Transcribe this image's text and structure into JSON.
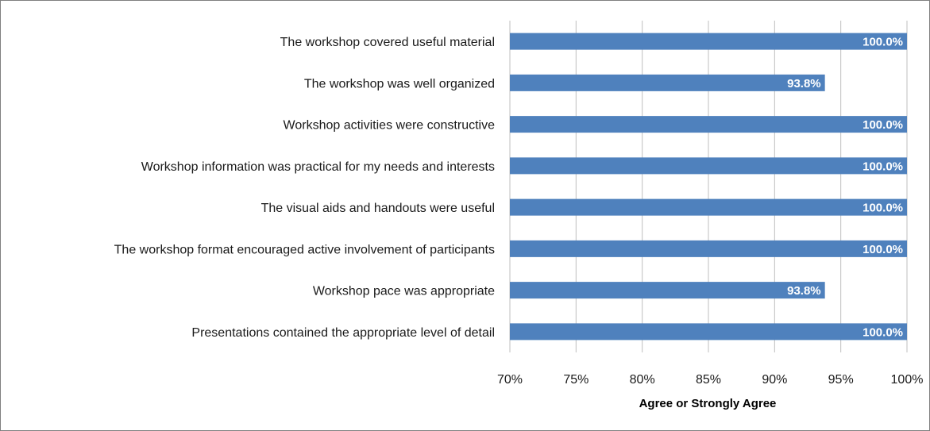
{
  "chart_data": {
    "type": "bar",
    "orientation": "horizontal",
    "title": "",
    "xlabel": "Agree or Strongly Agree",
    "ylabel": "",
    "xlim": [
      70,
      100
    ],
    "ticks": [
      70,
      75,
      80,
      85,
      90,
      95,
      100
    ],
    "tick_labels": [
      "70%",
      "75%",
      "80%",
      "85%",
      "90%",
      "95%",
      "100%"
    ],
    "grid": true,
    "legend": "none",
    "bar_color": "#4f81bd",
    "grid_color": "#bfbfbf",
    "categories": [
      "The workshop covered useful material",
      "The workshop was well organized",
      "Workshop activities were constructive",
      "Workshop information was practical for my needs and interests",
      "The visual aids and handouts were useful",
      "The workshop format encouraged active involvement of participants",
      "Workshop pace was appropriate",
      "Presentations contained the appropriate level of detail"
    ],
    "values": [
      100.0,
      93.8,
      100.0,
      100.0,
      100.0,
      100.0,
      93.8,
      100.0
    ],
    "data_labels": [
      "100.0%",
      "93.8%",
      "100.0%",
      "100.0%",
      "100.0%",
      "100.0%",
      "93.8%",
      "100.0%"
    ]
  }
}
